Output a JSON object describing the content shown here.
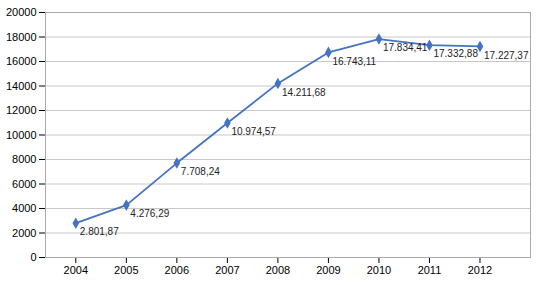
{
  "chart_data": {
    "type": "line",
    "x": [
      2004,
      2005,
      2006,
      2007,
      2008,
      2009,
      2010,
      2011,
      2012
    ],
    "values": [
      2801.87,
      4276.29,
      7708.24,
      10974.57,
      14211.68,
      16743.11,
      17834.41,
      17332.88,
      17227.37
    ],
    "value_labels": [
      "2.801,87",
      "4.276,29",
      "7.708,24",
      "10.974,57",
      "14.211,68",
      "16.743,11",
      "17.834,41",
      "17.332,88",
      "17.227,37"
    ],
    "data_labels": true,
    "color": "#4472C4",
    "marker": "diamond",
    "xlim": [
      2003.4,
      2013.0
    ],
    "xticks": [
      2004,
      2005,
      2006,
      2007,
      2008,
      2009,
      2010,
      2011,
      2012
    ],
    "ylim": [
      0,
      20000
    ],
    "yticks": [
      0,
      2000,
      4000,
      6000,
      8000,
      10000,
      12000,
      14000,
      16000,
      18000,
      20000
    ],
    "grid": true
  }
}
